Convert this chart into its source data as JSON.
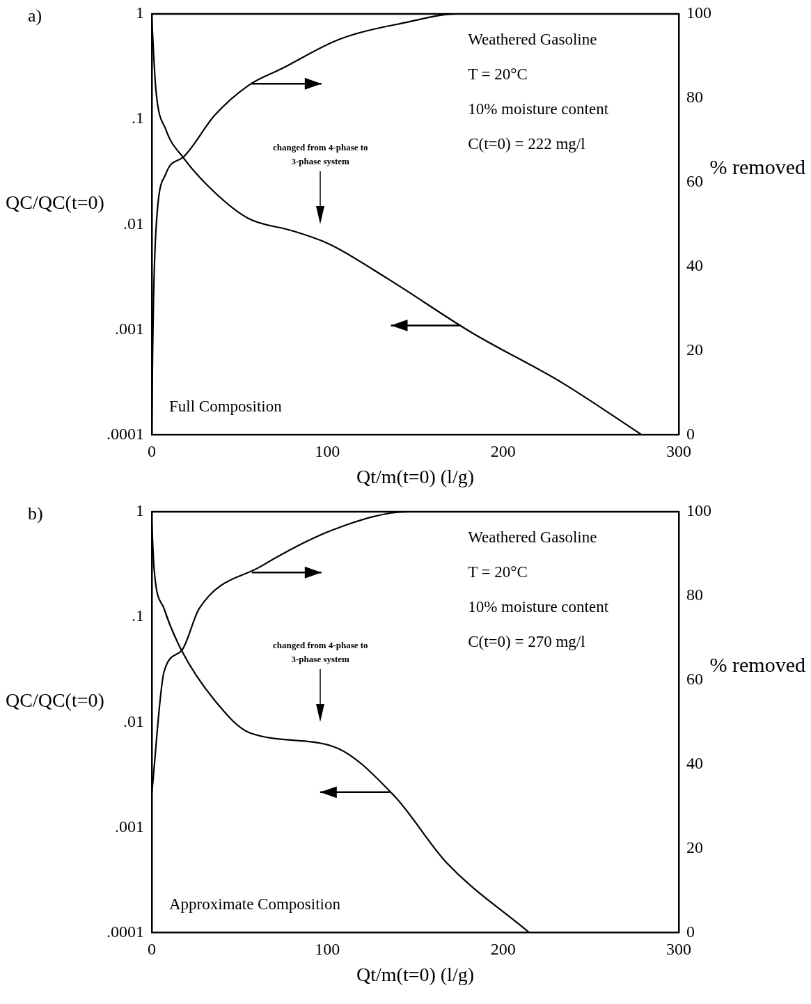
{
  "chart_data": [
    {
      "type": "line",
      "title": "a)",
      "xlabel": "Qt/m(t=0) (l/g)",
      "ylabel": "QC/QC(t=0)",
      "y2label": "% removed",
      "log": "y",
      "grid": false,
      "legend": false,
      "marker": "none",
      "line_style": "solid",
      "xlim": [
        0,
        300
      ],
      "xticks": [
        0,
        100,
        200,
        300
      ],
      "ylim": [
        0.0001,
        1
      ],
      "yticks": [
        {
          "value": 0.0001,
          "label": ".0001"
        },
        {
          "value": 0.001,
          "label": ".001"
        },
        {
          "value": 0.01,
          "label": ".01"
        },
        {
          "value": 0.1,
          "label": ".1"
        },
        {
          "value": 1,
          "label": "1"
        }
      ],
      "y2lim": [
        0,
        100
      ],
      "y2ticks": [
        0,
        20,
        40,
        60,
        80,
        100
      ],
      "series": [
        {
          "color": "#000000",
          "x": [
            0,
            2.3,
            8,
            18,
            36,
            55,
            80,
            101,
            135,
            182,
            234,
            279
          ],
          "values": [
            0.9,
            0.195,
            0.08,
            0.043,
            0.02,
            0.0114,
            0.0087,
            0.0065,
            0.003,
            0.00094,
            0.00031,
            0.0001
          ]
        },
        {
          "color": "#000000",
          "axis": "y2",
          "x": [
            0,
            0.5,
            1,
            2.3,
            8,
            18,
            36,
            55,
            74,
            107,
            145,
            174,
            300
          ],
          "values": [
            0,
            20,
            32,
            48,
            62,
            66,
            76,
            83,
            87,
            94,
            98,
            100,
            100
          ]
        }
      ],
      "annotations": [
        "Weathered Gasoline",
        "T = 20°C",
        "10% moisture content",
        "C(t=0) = 222 mg/l",
        "changed from 4-phase to 3-phase system",
        "Full Composition"
      ]
    },
    {
      "type": "line",
      "title": "b)",
      "xlabel": "Qt/m(t=0) (l/g)",
      "ylabel": "QC/QC(t=0)",
      "y2label": "% removed",
      "log": "y",
      "grid": false,
      "legend": false,
      "marker": "none",
      "line_style": "solid",
      "xlim": [
        0,
        300
      ],
      "xticks": [
        0,
        100,
        200,
        300
      ],
      "ylim": [
        0.0001,
        1
      ],
      "yticks": [
        {
          "value": 0.0001,
          "label": ".0001"
        },
        {
          "value": 0.001,
          "label": ".001"
        },
        {
          "value": 0.01,
          "label": ".01"
        },
        {
          "value": 0.1,
          "label": ".1"
        },
        {
          "value": 1,
          "label": "1"
        }
      ],
      "y2lim": [
        0,
        100
      ],
      "y2ticks": [
        0,
        20,
        40,
        60,
        80,
        100
      ],
      "series": [
        {
          "color": "#000000",
          "x": [
            0,
            1.3,
            7,
            17,
            36,
            56,
            103,
            138,
            168,
            215
          ],
          "values": [
            0.8,
            0.29,
            0.12,
            0.048,
            0.016,
            0.0079,
            0.0059,
            0.002,
            0.00046,
            0.0001
          ]
        },
        {
          "color": "#000000",
          "axis": "y2",
          "x": [
            0,
            7,
            17,
            27,
            62,
            105,
            146,
            300
          ],
          "values": [
            33,
            62,
            67,
            77,
            87,
            96,
            100,
            100
          ]
        }
      ],
      "annotations": [
        "Weathered Gasoline",
        "T = 20°C",
        "10% moisture content",
        "C(t=0) = 270 mg/l",
        "changed from 4-phase to 3-phase system",
        "Approximate Composition"
      ]
    }
  ]
}
